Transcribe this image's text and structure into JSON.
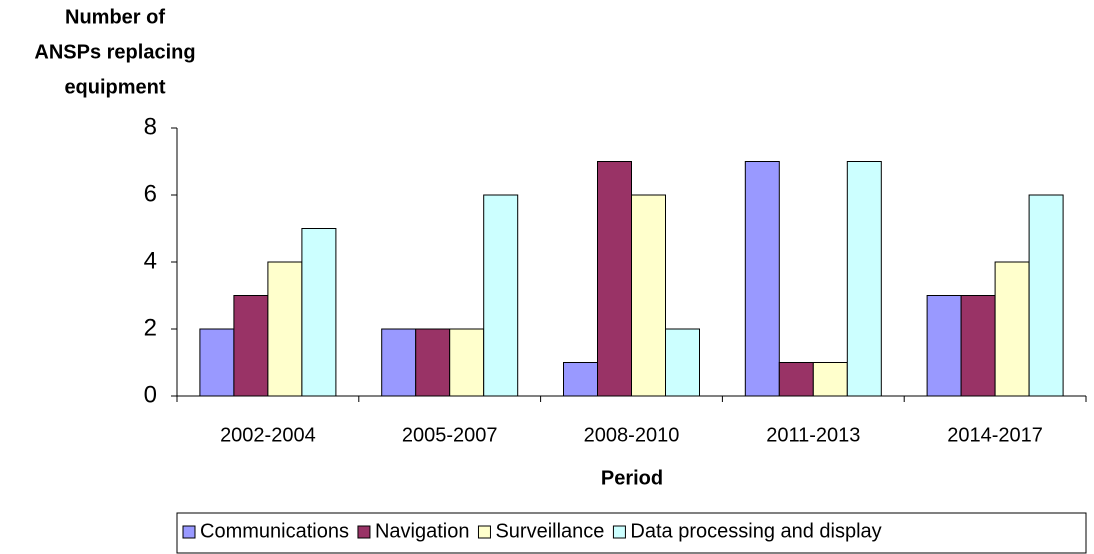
{
  "chart_data": {
    "type": "bar",
    "ylabel": [
      "Number of",
      "ANSPs replacing",
      "equipment"
    ],
    "xlabel": "Period",
    "categories": [
      "2002-2004",
      "2005-2007",
      "2008-2010",
      "2011-2013",
      "2014-2017"
    ],
    "series": [
      {
        "name": "Communications",
        "color": "#9999ff",
        "values": [
          2,
          2,
          1,
          7,
          3
        ]
      },
      {
        "name": "Navigation",
        "color": "#993366",
        "values": [
          3,
          2,
          7,
          1,
          3
        ]
      },
      {
        "name": "Surveillance",
        "color": "#ffffcc",
        "values": [
          4,
          2,
          6,
          1,
          4
        ]
      },
      {
        "name": "Data processing and display",
        "color": "#ccffff",
        "values": [
          5,
          6,
          2,
          7,
          6
        ]
      }
    ],
    "ylim": [
      0,
      8
    ],
    "yticks": [
      0,
      2,
      4,
      6,
      8
    ],
    "grid": false,
    "legend": "bottom"
  }
}
